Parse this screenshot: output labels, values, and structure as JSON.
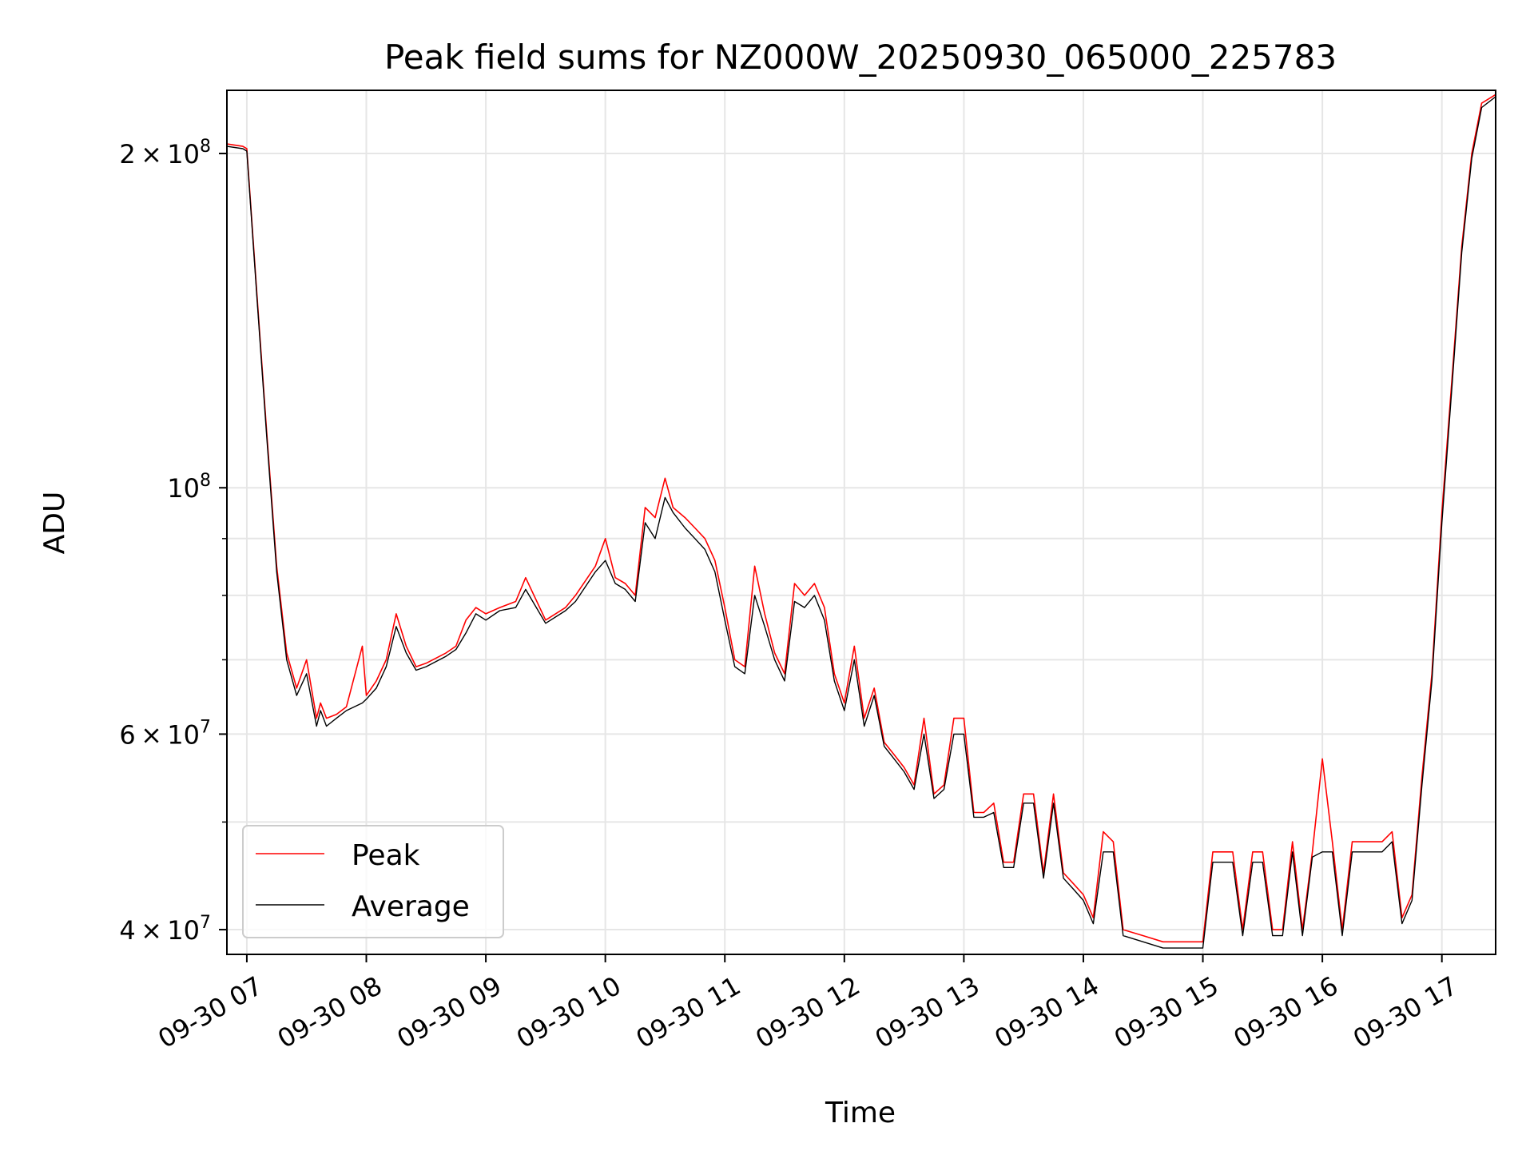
{
  "chart_data": {
    "type": "line",
    "title": "Peak field sums for NZ000W_20250930_065000_225783",
    "xlabel": "Time",
    "ylabel": "ADU",
    "y_scale": "log",
    "xlim": [
      "2025-09-30 06:50",
      "2025-09-30 17:27"
    ],
    "ylim": [
      38000000,
      228000000
    ],
    "grid": true,
    "legend_position": "lower-left",
    "x_ticks": [
      {
        "value": "2025-09-30 07:00",
        "label": "09-30 07"
      },
      {
        "value": "2025-09-30 08:00",
        "label": "09-30 08"
      },
      {
        "value": "2025-09-30 09:00",
        "label": "09-30 09"
      },
      {
        "value": "2025-09-30 10:00",
        "label": "09-30 10"
      },
      {
        "value": "2025-09-30 11:00",
        "label": "09-30 11"
      },
      {
        "value": "2025-09-30 12:00",
        "label": "09-30 12"
      },
      {
        "value": "2025-09-30 13:00",
        "label": "09-30 13"
      },
      {
        "value": "2025-09-30 14:00",
        "label": "09-30 14"
      },
      {
        "value": "2025-09-30 15:00",
        "label": "09-30 15"
      },
      {
        "value": "2025-09-30 16:00",
        "label": "09-30 16"
      },
      {
        "value": "2025-09-30 17:00",
        "label": "09-30 17"
      }
    ],
    "y_major_ticks": [
      {
        "value": 40000000,
        "mantissa": "4",
        "exponent": "7"
      },
      {
        "value": 60000000,
        "mantissa": "6",
        "exponent": "7"
      },
      {
        "value": 100000000,
        "mantissa": "",
        "exponent": "8"
      },
      {
        "value": 200000000,
        "mantissa": "2",
        "exponent": "8"
      }
    ],
    "y_minor_gridlines": [
      50000000,
      70000000,
      80000000,
      90000000
    ],
    "series": [
      {
        "name": "Peak",
        "color": "#ff0000",
        "x": [
          "2025-09-30 06:50",
          "2025-09-30 06:58",
          "2025-09-30 07:00",
          "2025-09-30 07:05",
          "2025-09-30 07:10",
          "2025-09-30 07:15",
          "2025-09-30 07:20",
          "2025-09-30 07:25",
          "2025-09-30 07:30",
          "2025-09-30 07:35",
          "2025-09-30 07:37",
          "2025-09-30 07:40",
          "2025-09-30 07:45",
          "2025-09-30 07:50",
          "2025-09-30 07:58",
          "2025-09-30 08:00",
          "2025-09-30 08:05",
          "2025-09-30 08:10",
          "2025-09-30 08:15",
          "2025-09-30 08:20",
          "2025-09-30 08:25",
          "2025-09-30 08:30",
          "2025-09-30 08:40",
          "2025-09-30 08:45",
          "2025-09-30 08:50",
          "2025-09-30 08:55",
          "2025-09-30 09:00",
          "2025-09-30 09:07",
          "2025-09-30 09:15",
          "2025-09-30 09:20",
          "2025-09-30 09:30",
          "2025-09-30 09:40",
          "2025-09-30 09:45",
          "2025-09-30 09:55",
          "2025-09-30 10:00",
          "2025-09-30 10:05",
          "2025-09-30 10:10",
          "2025-09-30 10:15",
          "2025-09-30 10:20",
          "2025-09-30 10:25",
          "2025-09-30 10:30",
          "2025-09-30 10:34",
          "2025-09-30 10:40",
          "2025-09-30 10:45",
          "2025-09-30 10:50",
          "2025-09-30 10:55",
          "2025-09-30 11:00",
          "2025-09-30 11:05",
          "2025-09-30 11:10",
          "2025-09-30 11:15",
          "2025-09-30 11:20",
          "2025-09-30 11:25",
          "2025-09-30 11:30",
          "2025-09-30 11:35",
          "2025-09-30 11:40",
          "2025-09-30 11:45",
          "2025-09-30 11:50",
          "2025-09-30 11:55",
          "2025-09-30 12:00",
          "2025-09-30 12:05",
          "2025-09-30 12:10",
          "2025-09-30 12:15",
          "2025-09-30 12:20",
          "2025-09-30 12:25",
          "2025-09-30 12:30",
          "2025-09-30 12:35",
          "2025-09-30 12:40",
          "2025-09-30 12:45",
          "2025-09-30 12:50",
          "2025-09-30 12:55",
          "2025-09-30 13:00",
          "2025-09-30 13:05",
          "2025-09-30 13:10",
          "2025-09-30 13:15",
          "2025-09-30 13:20",
          "2025-09-30 13:25",
          "2025-09-30 13:30",
          "2025-09-30 13:35",
          "2025-09-30 13:40",
          "2025-09-30 13:45",
          "2025-09-30 13:50",
          "2025-09-30 13:55",
          "2025-09-30 14:00",
          "2025-09-30 14:05",
          "2025-09-30 14:10",
          "2025-09-30 14:15",
          "2025-09-30 14:20",
          "2025-09-30 14:30",
          "2025-09-30 14:40",
          "2025-09-30 14:50",
          "2025-09-30 14:55",
          "2025-09-30 15:00",
          "2025-09-30 15:05",
          "2025-09-30 15:10",
          "2025-09-30 15:15",
          "2025-09-30 15:20",
          "2025-09-30 15:25",
          "2025-09-30 15:30",
          "2025-09-30 15:35",
          "2025-09-30 15:40",
          "2025-09-30 15:45",
          "2025-09-30 15:50",
          "2025-09-30 15:55",
          "2025-09-30 16:00",
          "2025-09-30 16:05",
          "2025-09-30 16:10",
          "2025-09-30 16:15",
          "2025-09-30 16:20",
          "2025-09-30 16:25",
          "2025-09-30 16:30",
          "2025-09-30 16:35",
          "2025-09-30 16:40",
          "2025-09-30 16:45",
          "2025-09-30 16:50",
          "2025-09-30 16:55",
          "2025-09-30 17:00",
          "2025-09-30 17:05",
          "2025-09-30 17:10",
          "2025-09-30 17:15",
          "2025-09-30 17:20",
          "2025-09-30 17:27"
        ],
        "y": [
          204000000,
          203000000,
          202000000,
          150000000,
          112000000,
          85000000,
          71000000,
          66000000,
          70000000,
          62000000,
          64000000,
          62000000,
          62500000,
          63500000,
          72000000,
          65000000,
          67000000,
          70000000,
          77000000,
          72000000,
          69000000,
          69500000,
          71000000,
          72000000,
          76000000,
          78000000,
          77000000,
          78000000,
          79000000,
          83000000,
          76000000,
          78000000,
          80000000,
          85000000,
          90000000,
          83000000,
          82000000,
          80000000,
          96000000,
          94000000,
          102000000,
          96000000,
          94000000,
          92000000,
          90000000,
          86000000,
          78000000,
          70000000,
          69000000,
          85000000,
          77000000,
          71000000,
          68000000,
          82000000,
          80000000,
          82000000,
          78000000,
          68000000,
          64000000,
          72000000,
          62000000,
          66000000,
          59000000,
          57500000,
          56000000,
          54000000,
          62000000,
          53000000,
          54000000,
          62000000,
          62000000,
          51000000,
          51000000,
          52000000,
          46000000,
          46000000,
          53000000,
          53000000,
          45000000,
          53000000,
          45000000,
          44000000,
          43000000,
          41000000,
          49000000,
          48000000,
          40000000,
          39500000,
          39000000,
          39000000,
          39000000,
          39000000,
          47000000,
          47000000,
          47000000,
          40000000,
          47000000,
          47000000,
          40000000,
          40000000,
          48000000,
          40000000,
          47000000,
          57000000,
          48000000,
          40000000,
          48000000,
          48000000,
          48000000,
          48000000,
          49000000,
          41000000,
          43000000,
          55000000,
          68000000,
          95000000,
          125000000,
          165000000,
          200000000,
          222000000,
          226000000
        ]
      },
      {
        "name": "Average",
        "color": "#000000",
        "x": [
          "2025-09-30 06:50",
          "2025-09-30 06:58",
          "2025-09-30 07:00",
          "2025-09-30 07:05",
          "2025-09-30 07:10",
          "2025-09-30 07:15",
          "2025-09-30 07:20",
          "2025-09-30 07:25",
          "2025-09-30 07:30",
          "2025-09-30 07:35",
          "2025-09-30 07:37",
          "2025-09-30 07:40",
          "2025-09-30 07:45",
          "2025-09-30 07:50",
          "2025-09-30 07:58",
          "2025-09-30 08:00",
          "2025-09-30 08:05",
          "2025-09-30 08:10",
          "2025-09-30 08:15",
          "2025-09-30 08:20",
          "2025-09-30 08:25",
          "2025-09-30 08:30",
          "2025-09-30 08:40",
          "2025-09-30 08:45",
          "2025-09-30 08:50",
          "2025-09-30 08:55",
          "2025-09-30 09:00",
          "2025-09-30 09:07",
          "2025-09-30 09:15",
          "2025-09-30 09:20",
          "2025-09-30 09:30",
          "2025-09-30 09:40",
          "2025-09-30 09:45",
          "2025-09-30 09:55",
          "2025-09-30 10:00",
          "2025-09-30 10:05",
          "2025-09-30 10:10",
          "2025-09-30 10:15",
          "2025-09-30 10:20",
          "2025-09-30 10:25",
          "2025-09-30 10:30",
          "2025-09-30 10:34",
          "2025-09-30 10:40",
          "2025-09-30 10:45",
          "2025-09-30 10:50",
          "2025-09-30 10:55",
          "2025-09-30 11:00",
          "2025-09-30 11:05",
          "2025-09-30 11:10",
          "2025-09-30 11:15",
          "2025-09-30 11:20",
          "2025-09-30 11:25",
          "2025-09-30 11:30",
          "2025-09-30 11:35",
          "2025-09-30 11:40",
          "2025-09-30 11:45",
          "2025-09-30 11:50",
          "2025-09-30 11:55",
          "2025-09-30 12:00",
          "2025-09-30 12:05",
          "2025-09-30 12:10",
          "2025-09-30 12:15",
          "2025-09-30 12:20",
          "2025-09-30 12:25",
          "2025-09-30 12:30",
          "2025-09-30 12:35",
          "2025-09-30 12:40",
          "2025-09-30 12:45",
          "2025-09-30 12:50",
          "2025-09-30 12:55",
          "2025-09-30 13:00",
          "2025-09-30 13:05",
          "2025-09-30 13:10",
          "2025-09-30 13:15",
          "2025-09-30 13:20",
          "2025-09-30 13:25",
          "2025-09-30 13:30",
          "2025-09-30 13:35",
          "2025-09-30 13:40",
          "2025-09-30 13:45",
          "2025-09-30 13:50",
          "2025-09-30 13:55",
          "2025-09-30 14:00",
          "2025-09-30 14:05",
          "2025-09-30 14:10",
          "2025-09-30 14:15",
          "2025-09-30 14:20",
          "2025-09-30 14:30",
          "2025-09-30 14:40",
          "2025-09-30 14:50",
          "2025-09-30 14:55",
          "2025-09-30 15:00",
          "2025-09-30 15:05",
          "2025-09-30 15:10",
          "2025-09-30 15:15",
          "2025-09-30 15:20",
          "2025-09-30 15:25",
          "2025-09-30 15:30",
          "2025-09-30 15:35",
          "2025-09-30 15:40",
          "2025-09-30 15:45",
          "2025-09-30 15:50",
          "2025-09-30 15:55",
          "2025-09-30 16:00",
          "2025-09-30 16:05",
          "2025-09-30 16:10",
          "2025-09-30 16:15",
          "2025-09-30 16:20",
          "2025-09-30 16:25",
          "2025-09-30 16:30",
          "2025-09-30 16:35",
          "2025-09-30 16:40",
          "2025-09-30 16:45",
          "2025-09-30 16:50",
          "2025-09-30 16:55",
          "2025-09-30 17:00",
          "2025-09-30 17:05",
          "2025-09-30 17:10",
          "2025-09-30 17:15",
          "2025-09-30 17:20",
          "2025-09-30 17:27"
        ],
        "y": [
          203000000,
          202000000,
          201000000,
          149000000,
          111000000,
          84000000,
          70000000,
          65000000,
          68000000,
          61000000,
          63000000,
          61000000,
          62000000,
          63000000,
          64000000,
          64500000,
          66000000,
          69000000,
          75000000,
          71000000,
          68500000,
          69000000,
          70500000,
          71500000,
          74000000,
          77000000,
          76000000,
          77500000,
          78000000,
          81000000,
          75500000,
          77500000,
          79000000,
          84000000,
          86000000,
          82000000,
          81000000,
          79000000,
          93000000,
          90000000,
          98000000,
          95000000,
          92000000,
          90000000,
          88000000,
          84000000,
          76000000,
          69000000,
          68000000,
          80000000,
          75000000,
          70000000,
          67000000,
          79000000,
          78000000,
          80000000,
          76000000,
          67000000,
          63000000,
          70000000,
          61000000,
          65000000,
          58500000,
          57000000,
          55500000,
          53500000,
          60000000,
          52500000,
          53500000,
          60000000,
          60000000,
          50500000,
          50500000,
          51000000,
          45500000,
          45500000,
          52000000,
          52000000,
          44500000,
          52000000,
          44500000,
          43500000,
          42500000,
          40500000,
          47000000,
          47000000,
          39500000,
          39000000,
          38500000,
          38500000,
          38500000,
          38500000,
          46000000,
          46000000,
          46000000,
          39500000,
          46000000,
          46000000,
          39500000,
          39500000,
          47000000,
          39500000,
          46500000,
          47000000,
          47000000,
          39500000,
          47000000,
          47000000,
          47000000,
          47000000,
          48000000,
          40500000,
          42500000,
          54000000,
          67000000,
          93000000,
          123000000,
          163000000,
          198000000,
          220000000,
          225000000
        ]
      }
    ]
  }
}
